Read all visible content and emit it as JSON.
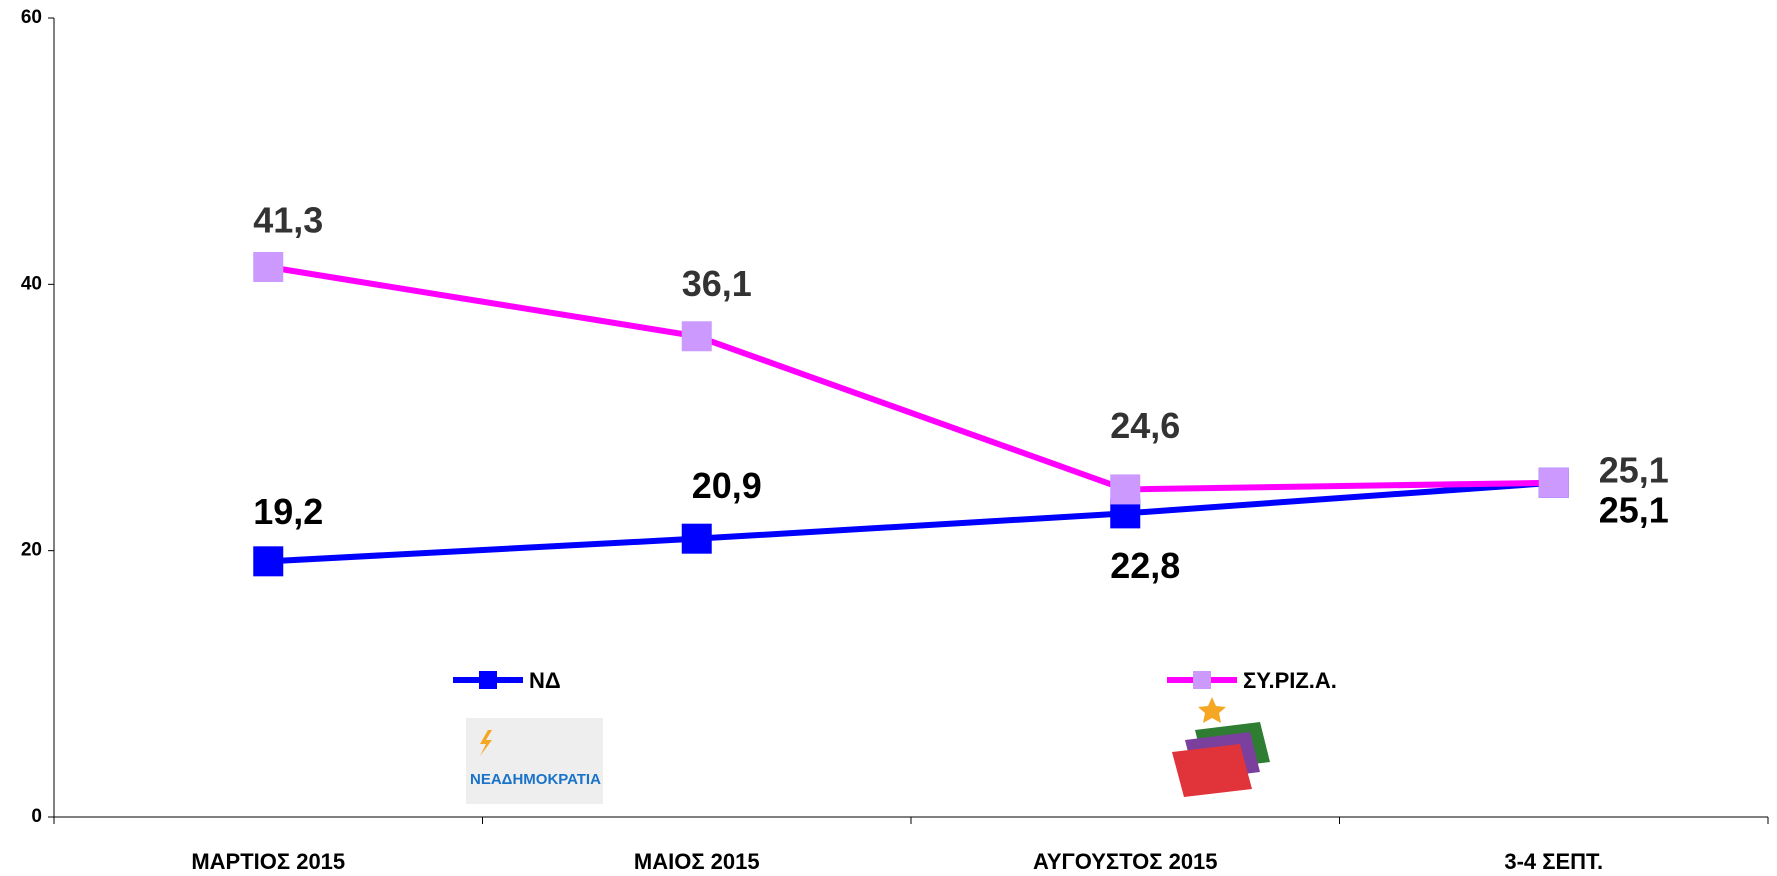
{
  "chart_data": {
    "type": "line",
    "categories": [
      "ΜΑΡΤΙΟΣ 2015",
      "ΜΑΙΟΣ 2015",
      "ΑΥΓΟΥΣΤΟΣ 2015",
      "3-4 ΣΕΠΤ."
    ],
    "series": [
      {
        "name": "ΝΔ",
        "color": "#0000ff",
        "marker_color": "#0000ff",
        "values": [
          19.2,
          20.9,
          22.8,
          25.1
        ],
        "value_labels": [
          "19,2",
          "20,9",
          "22,8",
          "25,1"
        ]
      },
      {
        "name": "ΣΥ.ΡΙΖ.Α.",
        "color": "#ff00ff",
        "marker_color": "#cc99ff",
        "values": [
          41.3,
          36.1,
          24.6,
          25.1
        ],
        "value_labels": [
          "41,3",
          "36,1",
          "24,6",
          "25,1"
        ]
      }
    ],
    "ylim": [
      0,
      60
    ],
    "yticks": [
      0,
      20,
      40,
      60
    ],
    "grid": false,
    "annotations": [
      "ΝΕΑΔΗΜΟΚΡΑΤΙΑ"
    ]
  }
}
